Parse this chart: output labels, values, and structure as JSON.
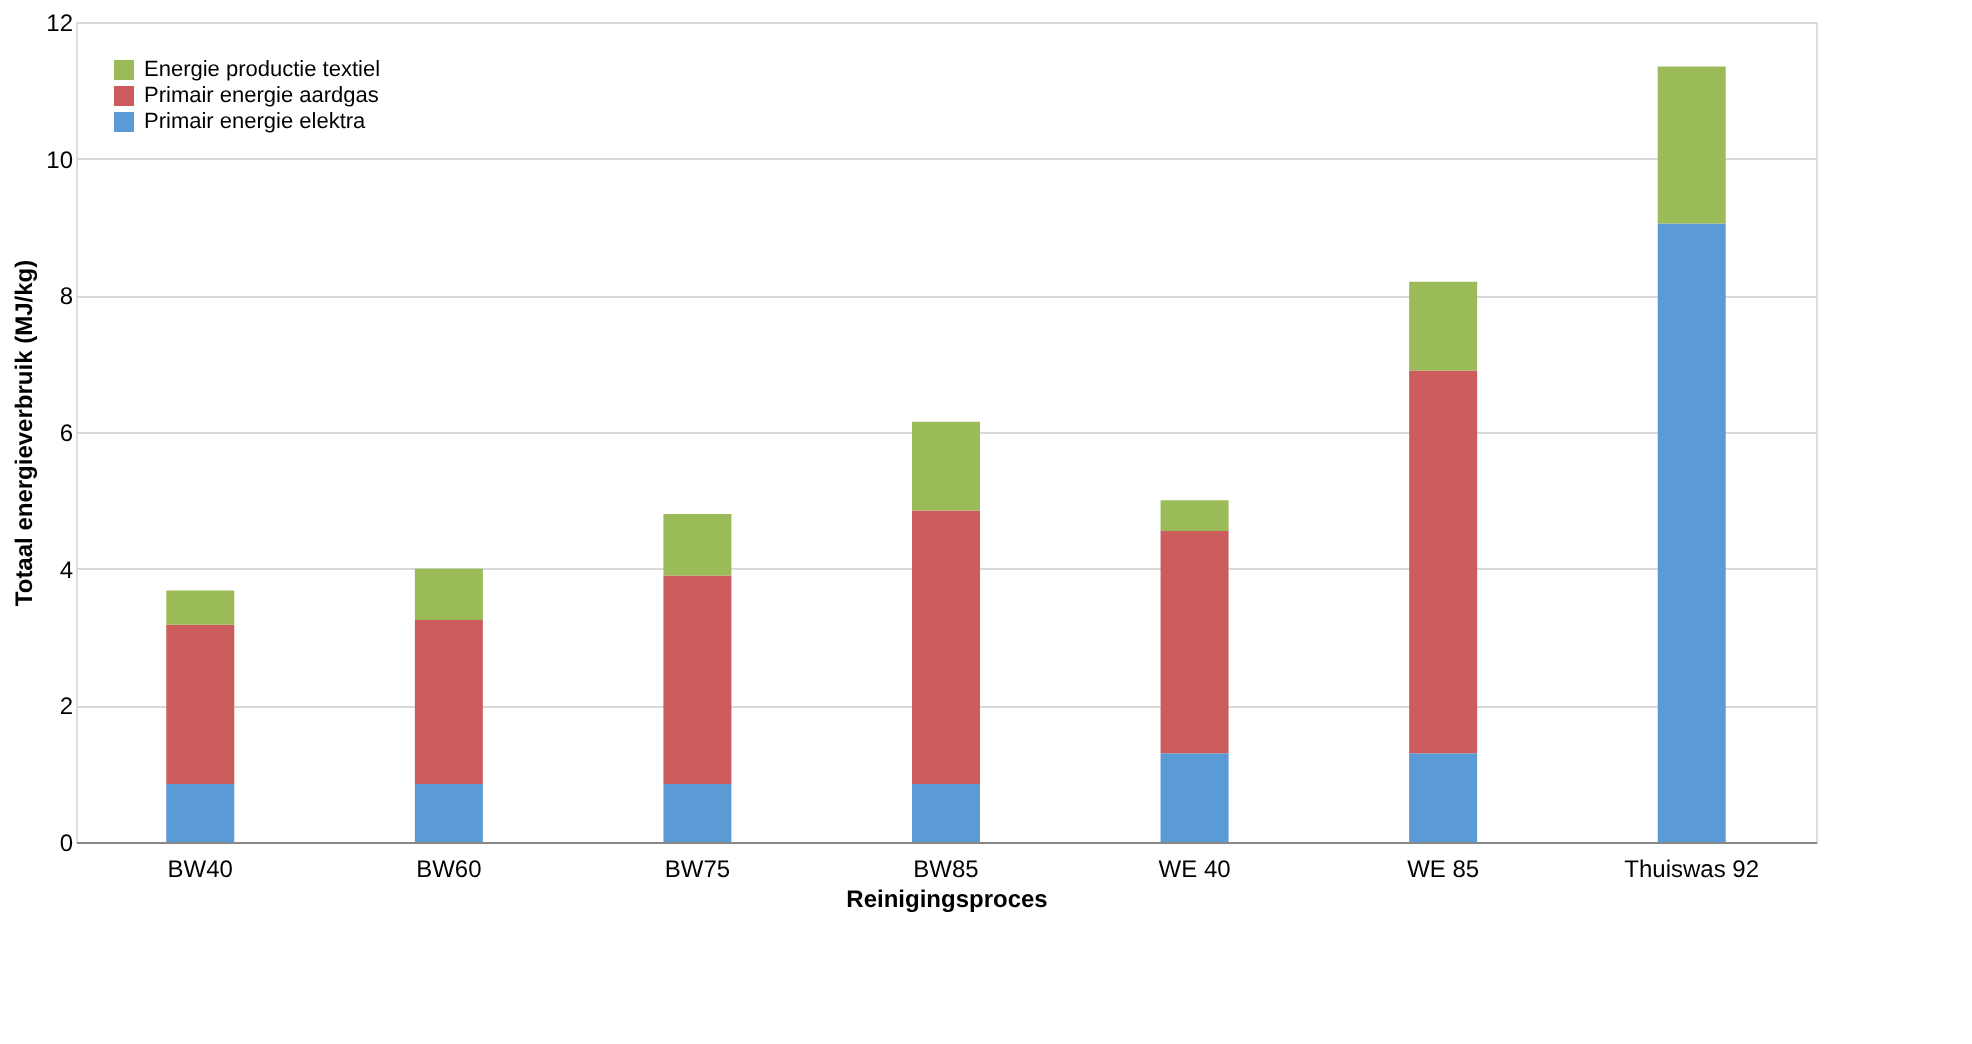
{
  "chart_data": {
    "type": "bar",
    "stacked": true,
    "xlabel": "Reinigingsproces",
    "ylabel": "Totaal energieverbruik (MJ/kg)",
    "categories": [
      "BW40",
      "BW60",
      "BW75",
      "BW85",
      "WE 40",
      "WE 85",
      "Thuiswas  92"
    ],
    "series": [
      {
        "name": "Primair energie elektra",
        "color": "#5b9bd5",
        "values": [
          0.85,
          0.85,
          0.85,
          0.85,
          1.3,
          1.3,
          9.05
        ]
      },
      {
        "name": "Primair energie aardgas",
        "color": "#cd5c5c",
        "values": [
          2.33,
          2.4,
          3.05,
          4.0,
          3.25,
          5.6,
          0
        ]
      },
      {
        "name": "Energie productie textiel",
        "color": "#9bbb59",
        "values": [
          0.5,
          0.75,
          0.9,
          1.3,
          0.45,
          1.3,
          2.3
        ]
      }
    ],
    "ylim": [
      0,
      12
    ],
    "yticks": [
      0,
      2,
      4,
      6,
      8,
      10,
      12
    ],
    "grid": "y",
    "legend": "top left"
  }
}
